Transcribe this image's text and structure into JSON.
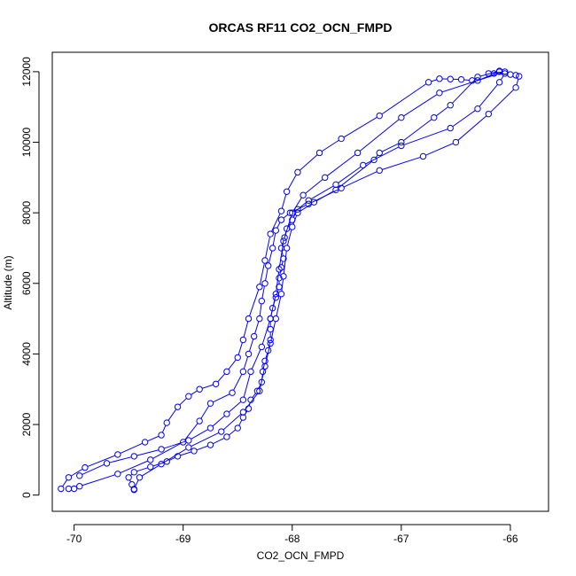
{
  "chart_data": {
    "type": "scatter",
    "title": "ORCAS RF11 CO2_OCN_FMPD",
    "xlabel": "CO2_OCN_FMPD",
    "ylabel": "Altitude (m)",
    "xlim": [
      -70.2,
      -65.65
    ],
    "ylim": [
      -460,
      12550
    ],
    "xticks": [
      -70,
      -69,
      -68,
      -67,
      -66
    ],
    "xtick_labels": [
      "-70",
      "-69",
      "-68",
      "-67",
      "-66"
    ],
    "yticks": [
      0,
      2000,
      4000,
      6000,
      8000,
      10000,
      12000
    ],
    "ytick_labels": [
      "0",
      "2000",
      "4000",
      "6000",
      "8000",
      "10000",
      "12000"
    ],
    "grid": false,
    "legend": "none",
    "color": "#0000ff",
    "marker": "open-circle",
    "connected": true,
    "series": [
      {
        "points": [
          [
            -69.45,
            150
          ],
          [
            -69.47,
            300
          ],
          [
            -69.5,
            500
          ],
          [
            -69.45,
            650
          ],
          [
            -69.3,
            800
          ],
          [
            -69.15,
            950
          ],
          [
            -69.05,
            1100
          ],
          [
            -68.9,
            1250
          ],
          [
            -68.75,
            1420
          ],
          [
            -68.6,
            1650
          ],
          [
            -68.5,
            1900
          ],
          [
            -68.45,
            2200
          ],
          [
            -68.4,
            2450
          ],
          [
            -68.38,
            2700
          ],
          [
            -68.32,
            2950
          ],
          [
            -68.28,
            3200
          ],
          [
            -68.27,
            3500
          ],
          [
            -68.25,
            3800
          ],
          [
            -68.22,
            4100
          ],
          [
            -68.2,
            4400
          ],
          [
            -68.2,
            4700
          ],
          [
            -68.2,
            5000
          ],
          [
            -68.18,
            5300
          ],
          [
            -68.15,
            5600
          ],
          [
            -68.12,
            5900
          ],
          [
            -68.12,
            6150
          ],
          [
            -68.1,
            6450
          ],
          [
            -68.08,
            6700
          ],
          [
            -68.1,
            7000
          ],
          [
            -68.07,
            7300
          ],
          [
            -68.05,
            7550
          ],
          [
            -68.0,
            7800
          ],
          [
            -67.95,
            8100
          ],
          [
            -67.85,
            8350
          ],
          [
            -67.6,
            8800
          ],
          [
            -67.35,
            9350
          ],
          [
            -67.0,
            9900
          ],
          [
            -66.55,
            10400
          ],
          [
            -66.3,
            10950
          ],
          [
            -66.1,
            11700
          ],
          [
            -66.05,
            11950
          ]
        ]
      },
      {
        "points": [
          [
            -66.1,
            12000
          ],
          [
            -66.3,
            11750
          ],
          [
            -66.35,
            11750
          ],
          [
            -66.45,
            11780
          ],
          [
            -66.55,
            11790
          ],
          [
            -66.65,
            11800
          ],
          [
            -66.75,
            11700
          ],
          [
            -67.2,
            10750
          ],
          [
            -67.55,
            10100
          ],
          [
            -67.75,
            9700
          ],
          [
            -67.95,
            9150
          ],
          [
            -68.05,
            8600
          ],
          [
            -68.1,
            8050
          ],
          [
            -68.2,
            7400
          ],
          [
            -68.25,
            6650
          ],
          [
            -68.3,
            5900
          ],
          [
            -68.4,
            5000
          ],
          [
            -68.45,
            4400
          ],
          [
            -68.5,
            3900
          ],
          [
            -68.6,
            3500
          ],
          [
            -68.7,
            3150
          ],
          [
            -68.85,
            3000
          ],
          [
            -68.95,
            2800
          ],
          [
            -69.05,
            2500
          ],
          [
            -69.15,
            2050
          ],
          [
            -69.2,
            1700
          ],
          [
            -69.35,
            1500
          ],
          [
            -69.6,
            1150
          ],
          [
            -69.9,
            780
          ],
          [
            -70.05,
            500
          ],
          [
            -70.12,
            180
          ]
        ]
      },
      {
        "points": [
          [
            -70.05,
            180
          ],
          [
            -70.0,
            180
          ],
          [
            -69.95,
            250
          ],
          [
            -69.6,
            600
          ],
          [
            -69.3,
            1000
          ],
          [
            -69.0,
            1500
          ],
          [
            -68.85,
            2100
          ],
          [
            -68.75,
            2600
          ],
          [
            -68.55,
            2900
          ],
          [
            -68.45,
            3500
          ],
          [
            -68.4,
            4000
          ],
          [
            -68.35,
            4500
          ],
          [
            -68.3,
            5000
          ],
          [
            -68.28,
            5500
          ],
          [
            -68.25,
            6000
          ],
          [
            -68.22,
            6500
          ],
          [
            -68.18,
            7000
          ],
          [
            -68.15,
            7500
          ],
          [
            -68.1,
            7800
          ],
          [
            -68.02,
            8000
          ],
          [
            -67.85,
            8250
          ],
          [
            -67.55,
            8700
          ],
          [
            -67.2,
            9200
          ],
          [
            -66.8,
            9600
          ],
          [
            -66.5,
            10000
          ],
          [
            -66.2,
            10800
          ],
          [
            -65.95,
            11550
          ],
          [
            -65.92,
            11870
          ]
        ]
      },
      {
        "points": [
          [
            -65.95,
            11900
          ],
          [
            -66.0,
            11920
          ],
          [
            -66.15,
            11950
          ],
          [
            -66.2,
            11950
          ],
          [
            -66.05,
            12000
          ],
          [
            -66.65,
            11400
          ],
          [
            -67.0,
            10700
          ],
          [
            -67.4,
            9700
          ],
          [
            -67.7,
            9000
          ],
          [
            -67.9,
            8500
          ],
          [
            -68.0,
            8000
          ],
          [
            -68.08,
            7200
          ],
          [
            -68.12,
            6400
          ],
          [
            -68.15,
            5700
          ],
          [
            -68.2,
            5000
          ],
          [
            -68.28,
            4200
          ],
          [
            -68.38,
            3500
          ],
          [
            -68.45,
            2700
          ],
          [
            -68.6,
            2300
          ],
          [
            -68.75,
            1900
          ],
          [
            -68.95,
            1550
          ],
          [
            -69.2,
            1300
          ],
          [
            -69.45,
            1100
          ],
          [
            -69.7,
            900
          ],
          [
            -69.95,
            550
          ]
        ]
      },
      {
        "points": [
          [
            -69.45,
            170
          ],
          [
            -69.4,
            500
          ],
          [
            -69.2,
            880
          ],
          [
            -68.95,
            1350
          ],
          [
            -68.65,
            1800
          ],
          [
            -68.45,
            2350
          ],
          [
            -68.3,
            2950
          ],
          [
            -68.25,
            3650
          ],
          [
            -68.2,
            4300
          ],
          [
            -68.15,
            5000
          ],
          [
            -68.1,
            5700
          ],
          [
            -68.08,
            6200
          ],
          [
            -68.05,
            7000
          ],
          [
            -68.0,
            7600
          ],
          [
            -67.95,
            8000
          ],
          [
            -67.8,
            8300
          ],
          [
            -67.6,
            8650
          ],
          [
            -67.25,
            9500
          ],
          [
            -67.2,
            9700
          ],
          [
            -67.0,
            10000
          ],
          [
            -66.7,
            10700
          ],
          [
            -66.55,
            11050
          ],
          [
            -66.3,
            11850
          ],
          [
            -66.1,
            12020
          ]
        ]
      }
    ]
  }
}
